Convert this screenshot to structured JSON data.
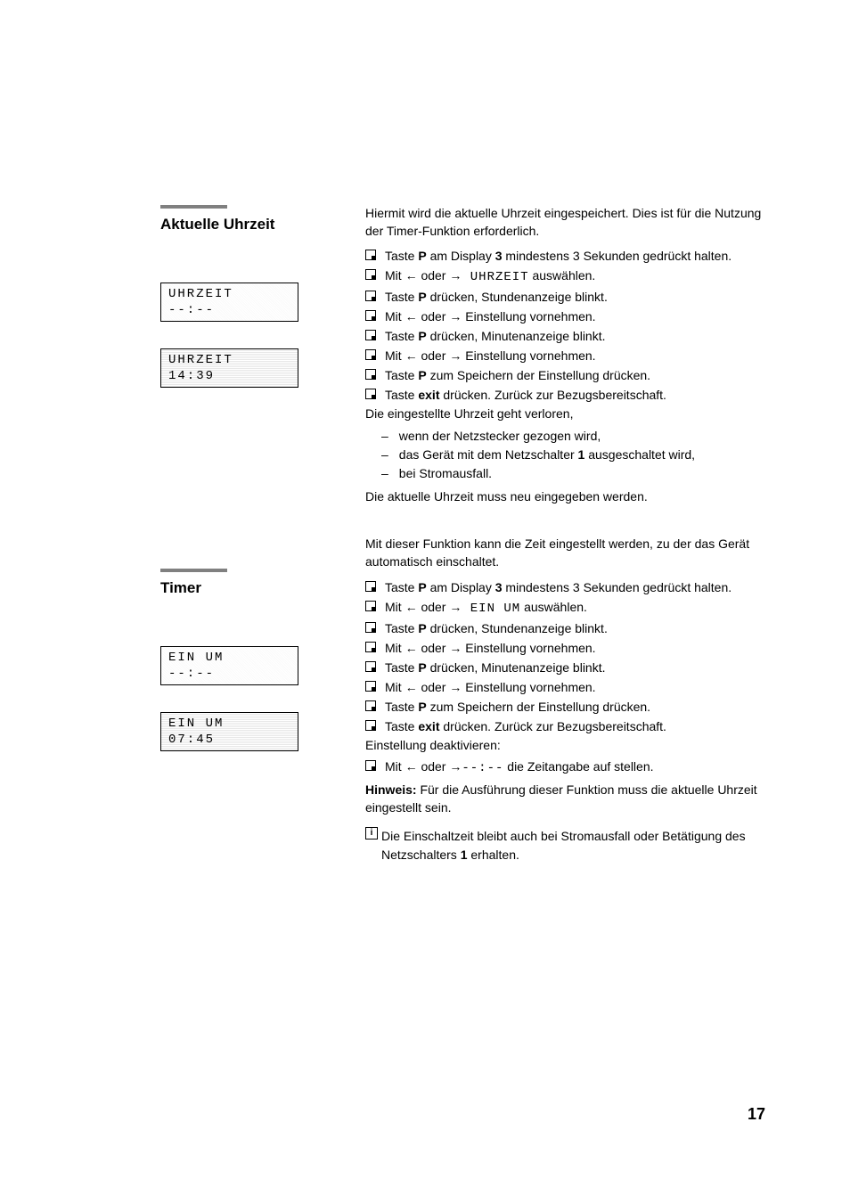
{
  "page_number": "17",
  "section1": {
    "heading": "Aktuelle Uhrzeit",
    "lcd1": {
      "line1": "UHRZEIT",
      "line2": "--:--"
    },
    "lcd2": {
      "line1": "UHRZEIT",
      "line2": "14:39"
    },
    "intro": "Hiermit wird die aktuelle Uhrzeit eingespeichert. Dies ist für die Nutzung der Timer-Funktion erforderlich.",
    "steps": [
      {
        "pre": "Taste ",
        "key": "P",
        "post": " am Display ",
        "bold": "3",
        "post2": " mindestens 3 Sekunden gedrückt halten."
      },
      {
        "pre": "Mit ",
        "arr1": "←",
        "mid": " oder ",
        "arr2": "→",
        "lcd": " UHRZEIT",
        "post": " auswählen."
      },
      {
        "pre": "Taste ",
        "key": "P",
        "post": " drücken, Stundenanzeige blinkt."
      },
      {
        "pre": "Mit ",
        "arr1": "←",
        "mid": " oder ",
        "arr2": "→",
        "post": " Einstellung vornehmen."
      },
      {
        "pre": "Taste ",
        "key": "P",
        "post": " drücken, Minutenanzeige blinkt."
      },
      {
        "pre": "Mit ",
        "arr1": "←",
        "mid": " oder ",
        "arr2": "→",
        "post": " Einstellung vornehmen."
      },
      {
        "pre": "Taste ",
        "key": "P",
        "post": " zum Speichern der Einstellung drücken."
      },
      {
        "pre": "Taste ",
        "key": "exit",
        "post": " drücken. Zurück zur Bezugsbereitschaft."
      }
    ],
    "after_text": "Die eingestellte Uhrzeit geht verloren,",
    "dashes": [
      "wenn der Netzstecker gezogen wird,",
      "das Gerät mit dem Netzschalter 1 ausgeschaltet wird,",
      "bei Stromausfall."
    ],
    "closing": "Die aktuelle Uhrzeit muss neu eingegeben werden."
  },
  "section2": {
    "heading": "Timer",
    "lcd1": {
      "line1": "EIN UM",
      "line2": "--:--"
    },
    "lcd2": {
      "line1": "EIN UM",
      "line2": "07:45"
    },
    "intro": "Mit dieser Funktion kann die Zeit eingestellt werden, zu der das Gerät automatisch einschaltet.",
    "steps": [
      {
        "pre": "Taste ",
        "key": "P",
        "post": " am Display ",
        "bold": "3",
        "post2": " mindestens 3 Sekunden gedrückt halten."
      },
      {
        "pre": "Mit ",
        "arr1": "←",
        "mid": " oder ",
        "arr2": "→",
        "lcd": " EIN UM",
        "post": " auswählen."
      },
      {
        "pre": "Taste ",
        "key": "P",
        "post": " drücken, Stundenanzeige blinkt."
      },
      {
        "pre": "Mit ",
        "arr1": "←",
        "mid": " oder ",
        "arr2": "→",
        "post": " Einstellung vornehmen."
      },
      {
        "pre": "Taste ",
        "key": "P",
        "post": " drücken, Minutenanzeige blinkt."
      },
      {
        "pre": "Mit ",
        "arr1": "←",
        "mid": " oder ",
        "arr2": "→",
        "post": " Einstellung vornehmen."
      },
      {
        "pre": "Taste ",
        "key": "P",
        "post": " zum Speichern der Einstellung drücken."
      },
      {
        "pre": "Taste ",
        "key": "exit",
        "post": " drücken. Zurück zur Bezugsbereitschaft."
      }
    ],
    "after_text": "Einstellung deaktivieren:",
    "deact_step": {
      "pre": "Mit ",
      "arr1": "←",
      "mid": " oder ",
      "arr2": "→",
      "post": " die Zeitangabe auf ",
      "lcd": "--:--",
      "post2": " stellen."
    },
    "hinweis_label": "Hinweis:",
    "hinweis_text": " Für die Ausführung dieser Funktion muss die aktuelle Uhrzeit eingestellt sein.",
    "info_text": "Die Einschaltzeit bleibt auch bei Stromausfall oder Betätigung des Netzschalters 1 erhalten."
  }
}
